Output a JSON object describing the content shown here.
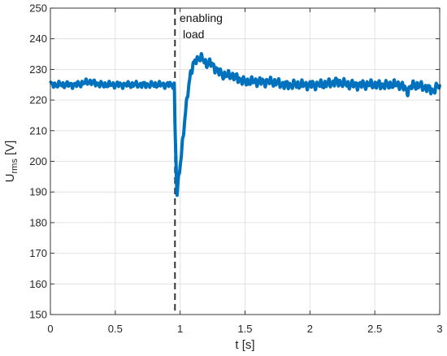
{
  "chart_data": {
    "type": "line",
    "xlabel": "t [s]",
    "ylabel_main": "U",
    "ylabel_sub": "rms",
    "ylabel_unit": " [V]",
    "xlim": [
      0,
      3
    ],
    "ylim": [
      150,
      250
    ],
    "x_ticks": [
      0,
      0.5,
      1,
      1.5,
      2,
      2.5,
      3
    ],
    "x_tick_labels": [
      "0",
      "0.5",
      "1",
      "1.5",
      "2",
      "2.5",
      "3"
    ],
    "y_ticks": [
      150,
      160,
      170,
      180,
      190,
      200,
      210,
      220,
      230,
      240,
      250
    ],
    "y_tick_labels": [
      "150",
      "160",
      "170",
      "180",
      "190",
      "200",
      "210",
      "220",
      "230",
      "240",
      "250"
    ],
    "grid": true,
    "event_line_x": 0.96,
    "annotation_line1": "enabling",
    "annotation_line2": "load",
    "series": [
      {
        "color": "#0072BD",
        "x": [
          0,
          0.1,
          0.2,
          0.3,
          0.4,
          0.5,
          0.6,
          0.7,
          0.8,
          0.9,
          0.955,
          0.96,
          0.975,
          1.0,
          1.03,
          1.06,
          1.08,
          1.1,
          1.12,
          1.15,
          1.18,
          1.2,
          1.23,
          1.26,
          1.3,
          1.35,
          1.4,
          1.45,
          1.5,
          1.55,
          1.6,
          1.7,
          1.8,
          1.9,
          2.0,
          2.1,
          2.2,
          2.3,
          2.4,
          2.5,
          2.6,
          2.7,
          2.75,
          2.8,
          2.9,
          2.95,
          3.0
        ],
        "y": [
          225,
          225,
          225,
          226,
          225,
          225,
          225,
          225,
          225,
          225,
          225,
          212,
          189,
          199,
          211,
          223,
          229,
          231,
          233,
          234,
          233,
          232,
          232,
          231,
          229,
          228,
          228,
          227,
          226,
          226,
          226,
          226,
          225,
          225,
          225,
          225,
          226,
          225,
          225,
          225,
          225,
          225,
          223,
          225,
          224,
          223,
          225
        ]
      }
    ]
  }
}
